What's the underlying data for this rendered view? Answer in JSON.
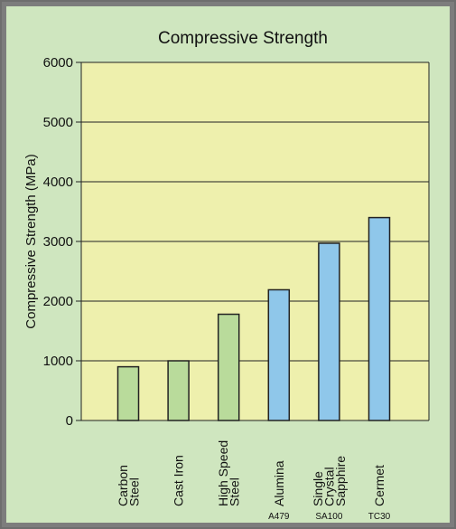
{
  "colors": {
    "frame_border": "#6e6e6e",
    "panel_bg": "#cfe6bf",
    "plot_bg": "#eef0ad",
    "metal_bar": "#b9db9b",
    "ceramic_bar": "#8fc7ea",
    "bar_outline": "#222222",
    "gridline": "#222222"
  },
  "chart_data": {
    "type": "bar",
    "title": "Compressive Strength",
    "xlabel": "",
    "ylabel": "Compressive Strength (MPa)",
    "ylim": [
      0,
      6000
    ],
    "yticks": [
      0,
      1000,
      2000,
      3000,
      4000,
      5000,
      6000
    ],
    "grid": true,
    "categories": [
      {
        "lines": [
          "Carbon",
          "Steel"
        ],
        "sub": "",
        "group": "metal"
      },
      {
        "lines": [
          "Cast Iron"
        ],
        "sub": "",
        "group": "metal"
      },
      {
        "lines": [
          "High Speed",
          "Steel"
        ],
        "sub": "",
        "group": "metal"
      },
      {
        "lines": [
          "Alumina"
        ],
        "sub": "A479",
        "group": "ceramic"
      },
      {
        "lines": [
          "Single",
          "Crystal",
          "Sapphire"
        ],
        "sub": "SA100",
        "group": "ceramic"
      },
      {
        "lines": [
          "Cermet"
        ],
        "sub": "TC30",
        "group": "ceramic"
      }
    ],
    "values": [
      900,
      1000,
      1780,
      2190,
      2970,
      3400
    ]
  }
}
